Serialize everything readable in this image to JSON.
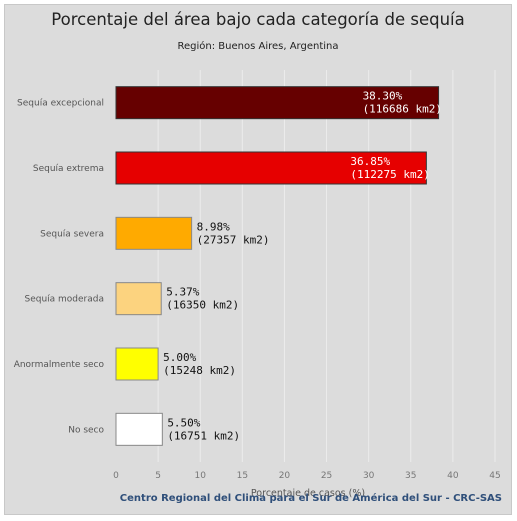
{
  "chart_data": {
    "type": "bar",
    "orientation": "horizontal",
    "title": "Porcentaje del área bajo cada categoría de sequía",
    "subtitle": "Región: Buenos Aires, Argentina",
    "xlabel": "Porcentaje de casos (%)",
    "ylabel": "",
    "xlim": [
      0,
      45
    ],
    "xticks": [
      0,
      5,
      10,
      15,
      20,
      25,
      30,
      35,
      40,
      45
    ],
    "grid": true,
    "categories": [
      "Sequía excepcional",
      "Sequía extrema",
      "Sequía severa",
      "Sequía moderada",
      "Anormalmente seco",
      "No seco"
    ],
    "values": [
      38.3,
      36.85,
      8.98,
      5.37,
      5.0,
      5.5
    ],
    "value_labels": [
      "38.30%",
      "36.85%",
      "8.98%",
      "5.37%",
      "5.00%",
      "5.50%"
    ],
    "area_labels": [
      "(116686 km2)",
      "(112275 km2)",
      "(27357 km2)",
      "(16350 km2)",
      "(15248 km2)",
      "(16751 km2)"
    ],
    "colors": [
      "#660000",
      "#e60000",
      "#ffaa00",
      "#fcd37f",
      "#ffff00",
      "#ffffff"
    ],
    "credit": "Centro Regional del Clima para el Sur de América del Sur - CRC-SAS"
  }
}
